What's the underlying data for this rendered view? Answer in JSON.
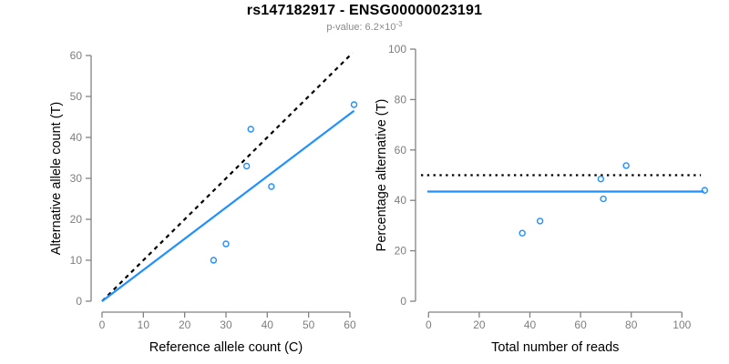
{
  "header": {
    "title": "rs147182917 - ENSG00000023191",
    "subtitle_main": "p-value: 6.2×10",
    "subtitle_exponent": "-3"
  },
  "colors": {
    "point_blue": "#1E90FF",
    "line_blue": "#1E90FF",
    "reference_line_black": "#000000",
    "axis_gray": "#828282",
    "tick_label_gray": "#7e7e7e",
    "axis_title_color": "#000000",
    "title_color": "#000000",
    "subtitle_gray": "#8a8a8a",
    "background": "#ffffff"
  },
  "chart_data": [
    {
      "type": "scatter",
      "name": "allele-count-scatter",
      "xlabel": "Reference allele count (C)",
      "ylabel": "Alternative allele count (T)",
      "xlim": [
        0,
        63
      ],
      "ylim": [
        0,
        62
      ],
      "xticks": [
        0,
        10,
        20,
        30,
        40,
        50,
        60
      ],
      "yticks": [
        0,
        10,
        20,
        30,
        40,
        50,
        60
      ],
      "points": [
        [
          27,
          10
        ],
        [
          30,
          14
        ],
        [
          35,
          33
        ],
        [
          36,
          42
        ],
        [
          41,
          28
        ],
        [
          61,
          48
        ]
      ],
      "lines": [
        {
          "name": "identity-line",
          "role": "y equals x reference",
          "style": "dashed",
          "color": "#000000",
          "x": [
            0,
            60.6
          ],
          "y": [
            0,
            60.6
          ]
        },
        {
          "name": "fit-line",
          "role": "fitted alt/ref ratio 0.762",
          "style": "solid",
          "color": "#1E90FF",
          "x": [
            0,
            61
          ],
          "y": [
            0,
            46.5
          ]
        }
      ],
      "grid": false,
      "legend": null
    },
    {
      "type": "scatter",
      "name": "percentage-scatter",
      "xlabel": "Total number of reads",
      "ylabel": "Percentage alternative (T)",
      "xlim": [
        0,
        110
      ],
      "ylim": [
        0,
        100
      ],
      "xticks": [
        0,
        20,
        40,
        60,
        80,
        100
      ],
      "yticks": [
        0,
        20,
        40,
        60,
        80,
        100
      ],
      "points": [
        [
          37,
          27
        ],
        [
          44,
          31.8
        ],
        [
          68,
          48.5
        ],
        [
          69,
          40.6
        ],
        [
          78,
          53.8
        ],
        [
          109,
          44
        ]
      ],
      "lines": [
        {
          "name": "fifty-percent-line",
          "role": "50 percent reference",
          "style": "dotted",
          "color": "#000000",
          "x": [
            -3,
            107.5
          ],
          "y": [
            50,
            50
          ]
        },
        {
          "name": "mean-percentage-line",
          "role": "overall alternative percentage",
          "style": "solid",
          "color": "#1E90FF",
          "x": [
            -0.5,
            108.7
          ],
          "y": [
            43.5,
            43.5
          ]
        }
      ],
      "grid": false,
      "legend": null
    }
  ]
}
